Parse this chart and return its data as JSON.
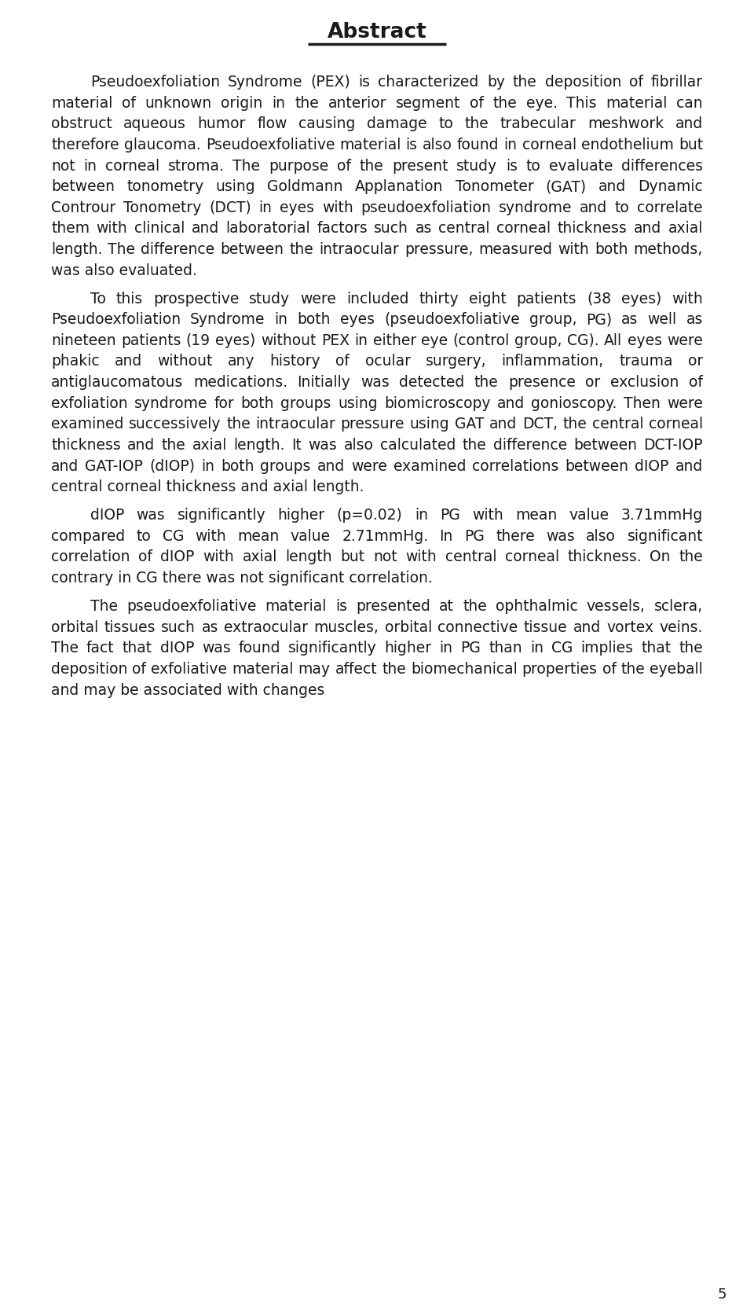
{
  "title": "Abstract",
  "background_color": "#ffffff",
  "text_color": "#1a1a1a",
  "page_number": "5",
  "font_size": 13.5,
  "title_font_size": 19,
  "paragraphs": [
    {
      "indent": true,
      "text": "Pseudoexfoliation Syndrome (PEX) is characterized by the deposition of fibrillar material of unknown origin in the anterior segment of the eye. This material can obstruct aqueous humor flow causing damage to the trabecular meshwork and therefore glaucoma. Pseudoexfoliative material is also found in corneal endothelium but not in corneal stroma. The purpose of the present study is to evaluate differences between tonometry using Goldmann Applanation Tonometer (GAT) and Dynamic Controur Tonometry (DCT) in eyes with pseudoexfoliation syndrome and to correlate them with clinical and laboratorial factors such as central corneal thickness and axial length. The difference between the intraocular pressure, measured with both methods, was also evaluated."
    },
    {
      "indent": true,
      "text": "To this prospective study were included thirty eight patients (38 eyes) with Pseudoexfoliation Syndrome in both eyes (pseudoexfoliative group, PG) as well as nineteen patients (19 eyes) without PEX in either eye (control group, CG).  All eyes were phakic and without any history of ocular surgery, inflammation, trauma or antiglaucomatous medications. Initially was  detected the presence or exclusion of exfoliation syndrome for both groups  using biomicroscopy and gonioscopy.  Then were examined successively the intraocular pressure using GAT and DCT, the central corneal thickness and the axial length. It was also calculated the difference between DCT-IOP and GAT-IOP (dIOP) in both groups and were examined correlations between dIOP and  central corneal thickness and axial length."
    },
    {
      "indent": true,
      "text": "dIOP was significantly higher (p=0.02) in PG with mean value 3.71mmHg compared to CG with mean value 2.71mmHg. In PG there was also significant correlation of  dIOP with axial length  but not with central corneal thickness. On the contrary in CG there was not significant correlation."
    },
    {
      "indent": true,
      "text": "The pseudoexfoliative material is presented at the ophthalmic vessels, sclera, orbital tissues such as extraocular muscles, orbital connective tissue and vortex veins. The fact that dIOP was found significantly higher in PG than in CG implies that the deposition of exfoliative material may affect the biomechanical properties of the eyeball and may be associated with changes"
    }
  ]
}
